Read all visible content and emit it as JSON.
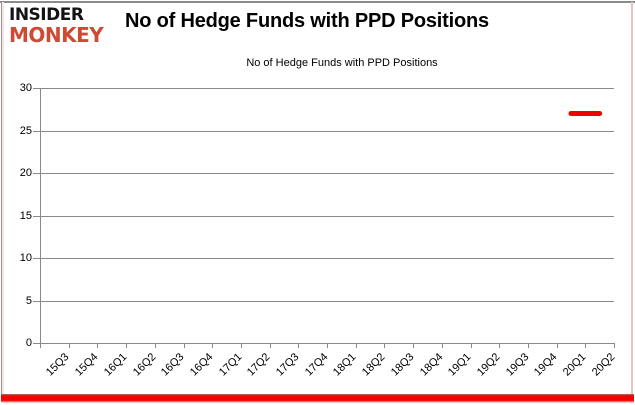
{
  "logo": {
    "line1": "INSIDER",
    "line2": "MONKEY",
    "accent_color": "#cf4a35"
  },
  "title": "No of Hedge Funds with PPD Positions",
  "legend": {
    "label": "No of Hedge Funds with PPD Positions",
    "marker_color": "#ee0202"
  },
  "colors": {
    "grid": "#898989",
    "axis": "#898989",
    "series": "#ee0202",
    "bottom_bar": "#f40000",
    "background": "#ffffff"
  },
  "chart_data": {
    "type": "line",
    "title": "No of Hedge Funds with PPD Positions",
    "xlabel": "",
    "ylabel": "",
    "categories": [
      "15Q3",
      "15Q4",
      "16Q1",
      "16Q2",
      "16Q3",
      "16Q4",
      "17Q1",
      "17Q2",
      "17Q3",
      "17Q4",
      "18Q1",
      "18Q2",
      "18Q3",
      "18Q4",
      "19Q1",
      "19Q2",
      "19Q3",
      "19Q4",
      "20Q1",
      "20Q2"
    ],
    "series": [
      {
        "name": "No of Hedge Funds with PPD Positions",
        "color": "#ee0202",
        "values": [
          null,
          null,
          null,
          null,
          null,
          null,
          null,
          null,
          null,
          null,
          null,
          null,
          null,
          null,
          null,
          null,
          null,
          null,
          27,
          27
        ]
      }
    ],
    "ylim": [
      0,
      30
    ],
    "yticks": [
      0,
      5,
      10,
      15,
      20,
      25,
      30
    ],
    "grid": true,
    "legend_position": "top-center"
  }
}
